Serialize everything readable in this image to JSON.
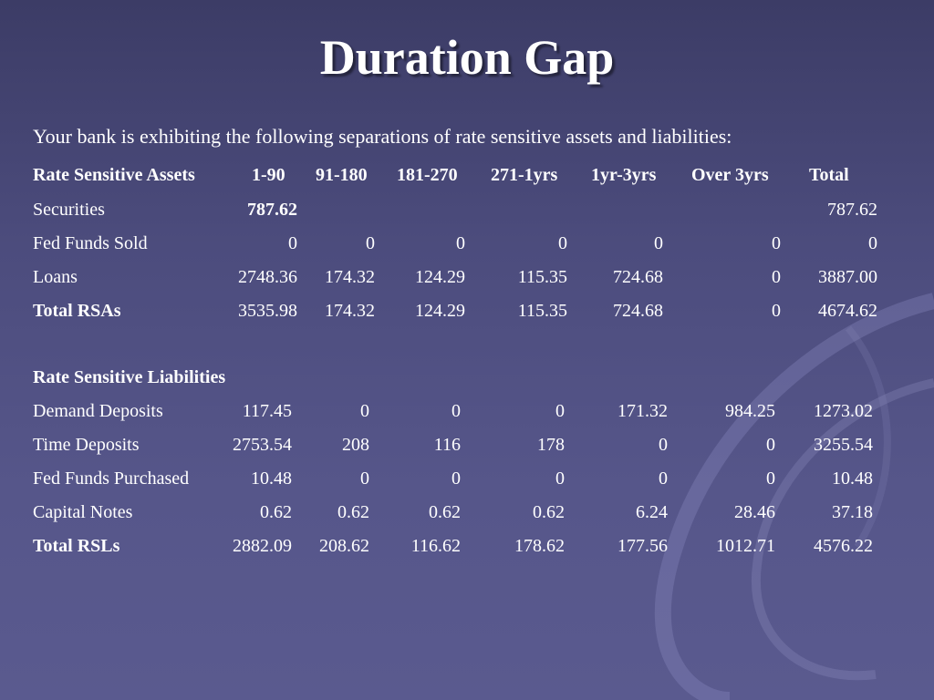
{
  "slide": {
    "title": "Duration Gap",
    "subtitle": "Your bank is exhibiting the following separations of rate sensitive assets and liabilities:"
  },
  "table": {
    "assets_header": [
      "Rate Sensitive Assets",
      "1-90",
      "91-180",
      "181-270",
      "271-1yrs",
      "1yr-3yrs",
      "Over 3yrs",
      "Total"
    ],
    "asset_rows": [
      {
        "label": "Securities",
        "values": [
          "787.62",
          "",
          "",
          "",
          "",
          "",
          "787.62"
        ],
        "bold": false
      },
      {
        "label": "Fed Funds Sold",
        "values": [
          "0",
          "0",
          "0",
          "0",
          "0",
          "0",
          "0"
        ],
        "bold": false
      },
      {
        "label": "Loans",
        "values": [
          "2748.36",
          "174.32",
          "124.29",
          "115.35",
          "724.68",
          "0",
          "3887.00"
        ],
        "bold": false
      },
      {
        "label": "Total RSAs",
        "values": [
          "3535.98",
          "174.32",
          "124.29",
          "115.35",
          "724.68",
          "0",
          "4674.62"
        ],
        "bold": true
      }
    ],
    "liabilities_header": "Rate Sensitive Liabilities",
    "liability_rows": [
      {
        "label": "Demand Deposits",
        "values": [
          "117.45",
          "0",
          "0",
          "0",
          "171.32",
          "984.25",
          "1273.02"
        ],
        "bold": false
      },
      {
        "label": "Time Deposits",
        "values": [
          "2753.54",
          "208",
          "116",
          "178",
          "0",
          "0",
          "3255.54"
        ],
        "bold": false
      },
      {
        "label": "Fed Funds Purchased",
        "values": [
          "10.48",
          "0",
          "0",
          "0",
          "0",
          "0",
          "10.48"
        ],
        "bold": false
      },
      {
        "label": "Capital Notes",
        "values": [
          "0.62",
          "0.62",
          "0.62",
          "0.62",
          "6.24",
          "28.46",
          "37.18"
        ],
        "bold": false
      },
      {
        "label": "Total RSLs",
        "values": [
          "2882.09",
          "208.62",
          "116.62",
          "178.62",
          "177.56",
          "1012.71",
          "4576.22"
        ],
        "bold": true
      }
    ]
  }
}
